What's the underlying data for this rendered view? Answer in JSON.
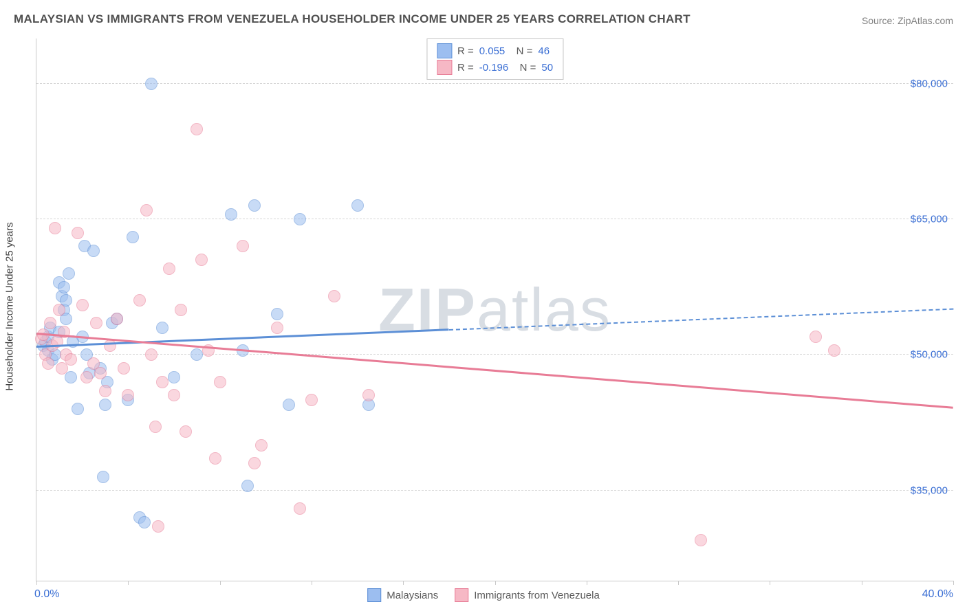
{
  "title": "MALAYSIAN VS IMMIGRANTS FROM VENEZUELA HOUSEHOLDER INCOME UNDER 25 YEARS CORRELATION CHART",
  "source": "Source: ZipAtlas.com",
  "yaxis_title": "Householder Income Under 25 years",
  "watermark": "ZIPatlas",
  "watermark_color": "#d8dde3",
  "chart": {
    "type": "scatter",
    "xlim": [
      0,
      40
    ],
    "ylim": [
      25000,
      85000
    ],
    "x_tick_positions": [
      0,
      4,
      8,
      12,
      16,
      20,
      24,
      28,
      32,
      36,
      40
    ],
    "y_gridlines": [
      35000,
      50000,
      65000,
      80000
    ],
    "y_tick_labels": [
      "$35,000",
      "$50,000",
      "$65,000",
      "$80,000"
    ],
    "x_label_min": "0.0%",
    "x_label_max": "40.0%",
    "background_color": "#ffffff",
    "grid_color": "#d6d6d6",
    "axis_color": "#c8c8c8",
    "marker_radius": 9,
    "marker_opacity": 0.55,
    "series": [
      {
        "name": "Malaysians",
        "color_fill": "#9cbef0",
        "color_stroke": "#5c8fd6",
        "R": "0.055",
        "N": "46",
        "points": [
          [
            0.3,
            51000
          ],
          [
            0.4,
            51500
          ],
          [
            0.5,
            52000
          ],
          [
            0.5,
            50500
          ],
          [
            0.6,
            53000
          ],
          [
            0.7,
            49500
          ],
          [
            1.0,
            58000
          ],
          [
            1.1,
            56500
          ],
          [
            1.2,
            55000
          ],
          [
            1.2,
            57500
          ],
          [
            1.3,
            54000
          ],
          [
            1.4,
            59000
          ],
          [
            1.5,
            47500
          ],
          [
            1.6,
            51500
          ],
          [
            1.8,
            44000
          ],
          [
            2.0,
            52000
          ],
          [
            2.1,
            62000
          ],
          [
            2.2,
            50000
          ],
          [
            2.3,
            48000
          ],
          [
            2.5,
            61500
          ],
          [
            2.8,
            48500
          ],
          [
            2.9,
            36500
          ],
          [
            3.0,
            44500
          ],
          [
            3.1,
            47000
          ],
          [
            3.3,
            53500
          ],
          [
            3.5,
            54000
          ],
          [
            4.0,
            45000
          ],
          [
            4.2,
            63000
          ],
          [
            4.5,
            32000
          ],
          [
            4.7,
            31500
          ],
          [
            5.0,
            80000
          ],
          [
            5.5,
            53000
          ],
          [
            6.0,
            47500
          ],
          [
            7.0,
            50000
          ],
          [
            8.5,
            65500
          ],
          [
            9.0,
            50500
          ],
          [
            9.2,
            35500
          ],
          [
            9.5,
            66500
          ],
          [
            10.5,
            54500
          ],
          [
            11.0,
            44500
          ],
          [
            11.5,
            65000
          ],
          [
            14.0,
            66500
          ],
          [
            14.5,
            44500
          ],
          [
            0.8,
            50000
          ],
          [
            1.0,
            52500
          ],
          [
            1.3,
            56000
          ]
        ],
        "regression": {
          "y_at_xmin": 50800,
          "y_at_xmax": 55000,
          "dash_from_x": 18
        }
      },
      {
        "name": "Immigrants from Venezuela",
        "color_fill": "#f6b8c5",
        "color_stroke": "#e87c96",
        "R": "-0.196",
        "N": "50",
        "points": [
          [
            0.2,
            51800
          ],
          [
            0.3,
            52200
          ],
          [
            0.4,
            50000
          ],
          [
            0.5,
            49000
          ],
          [
            0.6,
            53500
          ],
          [
            0.7,
            51000
          ],
          [
            0.8,
            64000
          ],
          [
            1.0,
            55000
          ],
          [
            1.1,
            48500
          ],
          [
            1.2,
            52500
          ],
          [
            1.3,
            50000
          ],
          [
            1.5,
            49500
          ],
          [
            1.8,
            63500
          ],
          [
            2.0,
            55500
          ],
          [
            2.2,
            47500
          ],
          [
            2.5,
            49000
          ],
          [
            2.6,
            53500
          ],
          [
            2.8,
            48000
          ],
          [
            3.0,
            46000
          ],
          [
            3.2,
            51000
          ],
          [
            3.5,
            54000
          ],
          [
            3.8,
            48500
          ],
          [
            4.0,
            45500
          ],
          [
            4.5,
            56000
          ],
          [
            4.8,
            66000
          ],
          [
            5.0,
            50000
          ],
          [
            5.2,
            42000
          ],
          [
            5.3,
            31000
          ],
          [
            5.5,
            47000
          ],
          [
            5.8,
            59500
          ],
          [
            6.0,
            45500
          ],
          [
            6.3,
            55000
          ],
          [
            6.5,
            41500
          ],
          [
            7.0,
            75000
          ],
          [
            7.2,
            60500
          ],
          [
            7.5,
            50500
          ],
          [
            7.8,
            38500
          ],
          [
            8.0,
            47000
          ],
          [
            9.0,
            62000
          ],
          [
            9.5,
            38000
          ],
          [
            9.8,
            40000
          ],
          [
            10.5,
            53000
          ],
          [
            11.5,
            33000
          ],
          [
            12.0,
            45000
          ],
          [
            13.0,
            56500
          ],
          [
            14.5,
            45500
          ],
          [
            29.0,
            29500
          ],
          [
            34.0,
            52000
          ],
          [
            34.8,
            50500
          ],
          [
            0.9,
            51500
          ]
        ],
        "regression": {
          "y_at_xmin": 52200,
          "y_at_xmax": 44000,
          "dash_from_x": 40
        }
      }
    ]
  },
  "legend": {
    "series1_label": "Malaysians",
    "series2_label": "Immigrants from Venezuela"
  }
}
